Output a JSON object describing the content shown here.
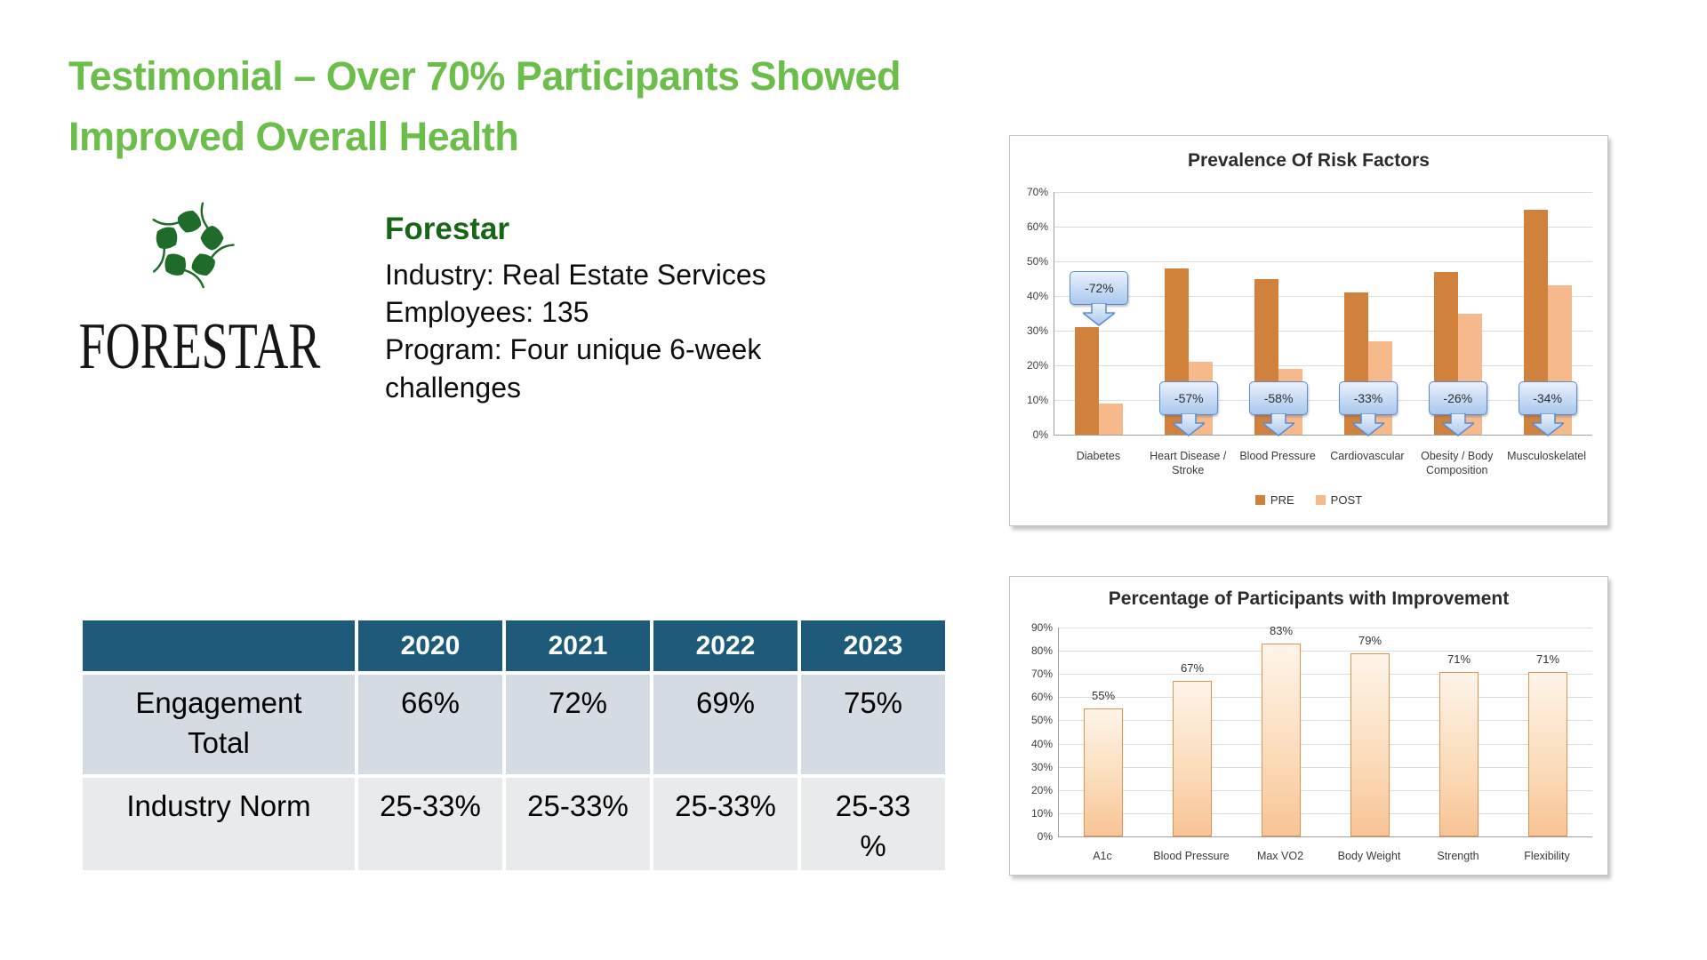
{
  "title": {
    "line1": "Testimonial – Over 70% Participants Showed",
    "line2": "Improved Overall Health"
  },
  "logo": {
    "wordmark": "FORESTAR"
  },
  "company": {
    "name": "Forestar",
    "industry": "Industry: Real Estate Services",
    "employees": "Employees: 135",
    "program": "Program: Four unique 6-week challenges"
  },
  "table": {
    "columns": [
      "",
      "2020",
      "2021",
      "2022",
      "2023"
    ],
    "rows": [
      {
        "label": "Engagement\nTotal",
        "values": [
          "66%",
          "72%",
          "69%",
          "75%"
        ]
      },
      {
        "label": "Industry Norm",
        "values": [
          "25-33%",
          "25-33%",
          "25-33%",
          "25-33\n%"
        ]
      }
    ]
  },
  "colors": {
    "title_green": "#6BBE4A",
    "company_green": "#176617",
    "logo_leaf_green": "#1F6B2A",
    "table_header": "#1E5B7A",
    "table_row_odd": "#D5DBE3",
    "table_row_even": "#E9EAEC",
    "pre_bar": "#D0813C",
    "post_bar": "#F5B98C",
    "callout_border": "#5B8BD0",
    "bar2_border": "#E3914E"
  },
  "chart_data": [
    {
      "type": "bar",
      "title": "Prevalence Of Risk Factors",
      "categories": [
        "Diabetes",
        "Heart Disease / Stroke",
        "Blood Pressure",
        "Cardiovascular",
        "Obesity / Body Composition",
        "Musculoskelatel"
      ],
      "series": [
        {
          "name": "PRE",
          "values": [
            31,
            48,
            45,
            41,
            47,
            65
          ]
        },
        {
          "name": "POST",
          "values": [
            9,
            21,
            19,
            27,
            35,
            43
          ]
        }
      ],
      "annotations": [
        "-72%",
        "-57%",
        "-58%",
        "-33%",
        "-26%",
        "-34%"
      ],
      "xlabel": "",
      "ylabel": "",
      "ylim": [
        0,
        70
      ],
      "ytick_step": 10,
      "grid": true,
      "legend_position": "bottom"
    },
    {
      "type": "bar",
      "title": "Percentage of Participants with Improvement",
      "categories": [
        "A1c",
        "Blood Pressure",
        "Max VO2",
        "Body Weight",
        "Strength",
        "Flexibility"
      ],
      "values": [
        55,
        67,
        83,
        79,
        71,
        71
      ],
      "data_labels": [
        "55%",
        "67%",
        "83%",
        "79%",
        "71%",
        "71%"
      ],
      "xlabel": "",
      "ylabel": "",
      "ylim": [
        0,
        90
      ],
      "ytick_step": 10,
      "grid": true,
      "legend_position": "none"
    }
  ]
}
